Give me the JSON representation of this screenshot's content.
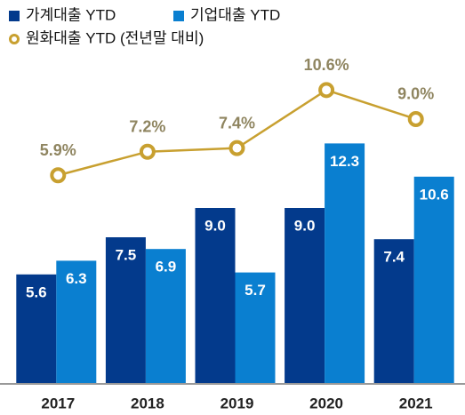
{
  "chart_data": {
    "type": "bar-line",
    "categories": [
      "2017",
      "2018",
      "2019",
      "2020",
      "2021"
    ],
    "series": [
      {
        "name": "가계대출 YTD",
        "color": "#033a8c",
        "type": "bar",
        "values": [
          5.6,
          7.5,
          9.0,
          9.0,
          7.4
        ],
        "value_labels": [
          "5.6",
          "7.5",
          "9.0",
          "9.0",
          "7.4"
        ]
      },
      {
        "name": "기업대출 YTD",
        "color": "#0a7fd0",
        "type": "bar",
        "values": [
          6.3,
          6.9,
          5.7,
          12.3,
          10.6
        ],
        "value_labels": [
          "6.3",
          "6.9",
          "5.7",
          "12.3",
          "10.6"
        ]
      },
      {
        "name": "원화대출 YTD (전년말 대비)",
        "color": "#c8a030",
        "type": "line",
        "axis": "y2",
        "values": [
          5.9,
          7.2,
          7.4,
          10.6,
          9.0
        ],
        "value_labels": [
          "5.9%",
          "7.2%",
          "7.4%",
          "10.6%",
          "9.0%"
        ]
      }
    ],
    "ylim": [
      0,
      18
    ],
    "y2lim": [
      -5.6,
      13.8
    ]
  }
}
